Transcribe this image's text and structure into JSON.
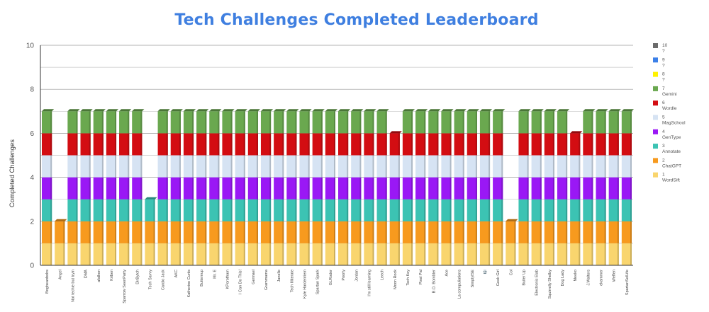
{
  "chart_data": {
    "type": "bar",
    "stacked": true,
    "title": "Tech Challenges Completed Leaderboard",
    "xlabel": "",
    "ylabel": "Completed Challenges",
    "ylim": [
      0,
      10
    ],
    "yticks": [
      0,
      2,
      4,
      6,
      8,
      10
    ],
    "grid": true,
    "legend_position": "right",
    "categories": [
      "Bogbeanbobs",
      "Angel",
      "Not techie but tryin",
      "DMA",
      "afalken",
      "Kriben",
      "Sparrow SeenParty",
      "DirBytch",
      "Tech Savvy",
      "Cardio Jack",
      "AKC",
      "Katherine Curtis",
      "Butternup",
      "Mr. E",
      "KPorotham",
      "I Can Do This!",
      "Gennael",
      "Grammama",
      "Janelle",
      "Tech Illiterate",
      "Kyle Hardenriem",
      "Spartan Spark",
      "GLRoder",
      "Poorly",
      "Jordan",
      "I'm still learning",
      "Leech",
      "Moon Rock",
      "Tech Key",
      "Pixel Pal",
      "B.O. Bombter",
      "Ace",
      "La compuliations",
      "SimplyISE",
      "🎼",
      "Geek Girl",
      "Col",
      "Builer Up",
      "Electronic Elab",
      "Squirrelly Shelby",
      "Dog Lady",
      "Meeko",
      "J.Walters",
      "ekammer",
      "Weffen",
      "SpartanSelLife"
    ],
    "series": [
      {
        "name": "WordSift",
        "color": "#f9d56e",
        "values": [
          1,
          1,
          1,
          1,
          1,
          1,
          1,
          1,
          1,
          1,
          1,
          1,
          1,
          1,
          1,
          1,
          1,
          1,
          1,
          1,
          1,
          1,
          1,
          1,
          1,
          1,
          1,
          1,
          1,
          1,
          1,
          1,
          1,
          1,
          1,
          1,
          1,
          1,
          1,
          1,
          1,
          1,
          1,
          1,
          1,
          1
        ]
      },
      {
        "name": "ChatGPT",
        "color": "#f79a1e",
        "values": [
          1,
          1,
          1,
          1,
          1,
          1,
          1,
          1,
          1,
          1,
          1,
          1,
          1,
          1,
          1,
          1,
          1,
          1,
          1,
          1,
          1,
          1,
          1,
          1,
          1,
          1,
          1,
          1,
          1,
          1,
          1,
          1,
          1,
          1,
          1,
          1,
          1,
          1,
          1,
          1,
          1,
          1,
          1,
          1,
          1,
          1
        ]
      },
      {
        "name": "Annotate",
        "color": "#3cc3b3",
        "values": [
          1,
          0,
          1,
          1,
          1,
          1,
          1,
          1,
          1,
          1,
          1,
          1,
          1,
          1,
          1,
          1,
          1,
          1,
          1,
          1,
          1,
          1,
          1,
          1,
          1,
          1,
          1,
          1,
          1,
          1,
          1,
          1,
          1,
          1,
          1,
          1,
          0,
          1,
          1,
          1,
          1,
          1,
          1,
          1,
          1,
          1
        ]
      },
      {
        "name": "GenType",
        "color": "#9a18f5",
        "values": [
          1,
          0,
          1,
          1,
          1,
          1,
          1,
          1,
          0,
          1,
          1,
          1,
          1,
          1,
          1,
          1,
          1,
          1,
          1,
          1,
          1,
          1,
          1,
          1,
          1,
          1,
          1,
          1,
          1,
          1,
          1,
          1,
          1,
          1,
          1,
          1,
          0,
          1,
          1,
          1,
          1,
          1,
          1,
          1,
          1,
          1
        ]
      },
      {
        "name": "MagSchool",
        "color": "#d6e3f3",
        "values": [
          1,
          0,
          1,
          1,
          1,
          1,
          1,
          1,
          0,
          1,
          1,
          1,
          1,
          1,
          1,
          1,
          1,
          1,
          1,
          1,
          1,
          1,
          1,
          1,
          1,
          1,
          1,
          1,
          1,
          1,
          1,
          1,
          1,
          1,
          1,
          1,
          0,
          1,
          1,
          1,
          1,
          1,
          1,
          1,
          1,
          1
        ]
      },
      {
        "name": "Wordle",
        "color": "#d30d12",
        "values": [
          1,
          0,
          1,
          1,
          1,
          1,
          1,
          1,
          0,
          1,
          1,
          1,
          1,
          1,
          1,
          1,
          1,
          1,
          1,
          1,
          1,
          1,
          1,
          1,
          1,
          1,
          1,
          1,
          1,
          1,
          1,
          1,
          1,
          1,
          1,
          1,
          0,
          1,
          1,
          1,
          1,
          1,
          1,
          1,
          1,
          1
        ]
      },
      {
        "name": "Gemini",
        "color": "#6aa84f",
        "values": [
          1,
          0,
          1,
          1,
          1,
          1,
          1,
          1,
          0,
          1,
          1,
          1,
          1,
          1,
          1,
          1,
          1,
          1,
          1,
          1,
          1,
          1,
          1,
          1,
          1,
          1,
          1,
          0,
          1,
          1,
          1,
          1,
          1,
          1,
          1,
          1,
          0,
          1,
          1,
          1,
          1,
          0,
          1,
          1,
          1,
          1
        ]
      },
      {
        "name": "?",
        "color": "#fff200",
        "values": [
          0,
          0,
          0,
          0,
          0,
          0,
          0,
          0,
          0,
          0,
          0,
          0,
          0,
          0,
          0,
          0,
          0,
          0,
          0,
          0,
          0,
          0,
          0,
          0,
          0,
          0,
          0,
          0,
          0,
          0,
          0,
          0,
          0,
          0,
          0,
          0,
          0,
          0,
          0,
          0,
          0,
          0,
          0,
          0,
          0,
          0
        ]
      },
      {
        "name": "?",
        "color": "#3c80e8",
        "values": [
          0,
          0,
          0,
          0,
          0,
          0,
          0,
          0,
          0,
          0,
          0,
          0,
          0,
          0,
          0,
          0,
          0,
          0,
          0,
          0,
          0,
          0,
          0,
          0,
          0,
          0,
          0,
          0,
          0,
          0,
          0,
          0,
          0,
          0,
          0,
          0,
          0,
          0,
          0,
          0,
          0,
          0,
          0,
          0,
          0,
          0
        ]
      },
      {
        "name": "?",
        "color": "#6b6b6b",
        "values": [
          0,
          0,
          0,
          0,
          0,
          0,
          0,
          0,
          0,
          0,
          0,
          0,
          0,
          0,
          0,
          0,
          0,
          0,
          0,
          0,
          0,
          0,
          0,
          0,
          0,
          0,
          0,
          0,
          0,
          0,
          0,
          0,
          0,
          0,
          0,
          0,
          0,
          0,
          0,
          0,
          0,
          0,
          0,
          0,
          0,
          0
        ]
      }
    ],
    "legend": [
      {
        "num": "10",
        "name": "?",
        "color": "#6b6b6b"
      },
      {
        "num": "9",
        "name": "?",
        "color": "#3c80e8"
      },
      {
        "num": "8",
        "name": "?",
        "color": "#fff200"
      },
      {
        "num": "7",
        "name": "Gemini",
        "color": "#6aa84f"
      },
      {
        "num": "6",
        "name": "Wordle",
        "color": "#d30d12"
      },
      {
        "num": "5",
        "name": "MagSchool",
        "color": "#d6e3f3"
      },
      {
        "num": "4",
        "name": "GenType",
        "color": "#9a18f5"
      },
      {
        "num": "3",
        "name": "Annotate",
        "color": "#3cc3b3"
      },
      {
        "num": "2",
        "name": "ChatGPT",
        "color": "#f79a1e"
      },
      {
        "num": "1",
        "name": "WordSift",
        "color": "#f9d56e"
      }
    ]
  }
}
